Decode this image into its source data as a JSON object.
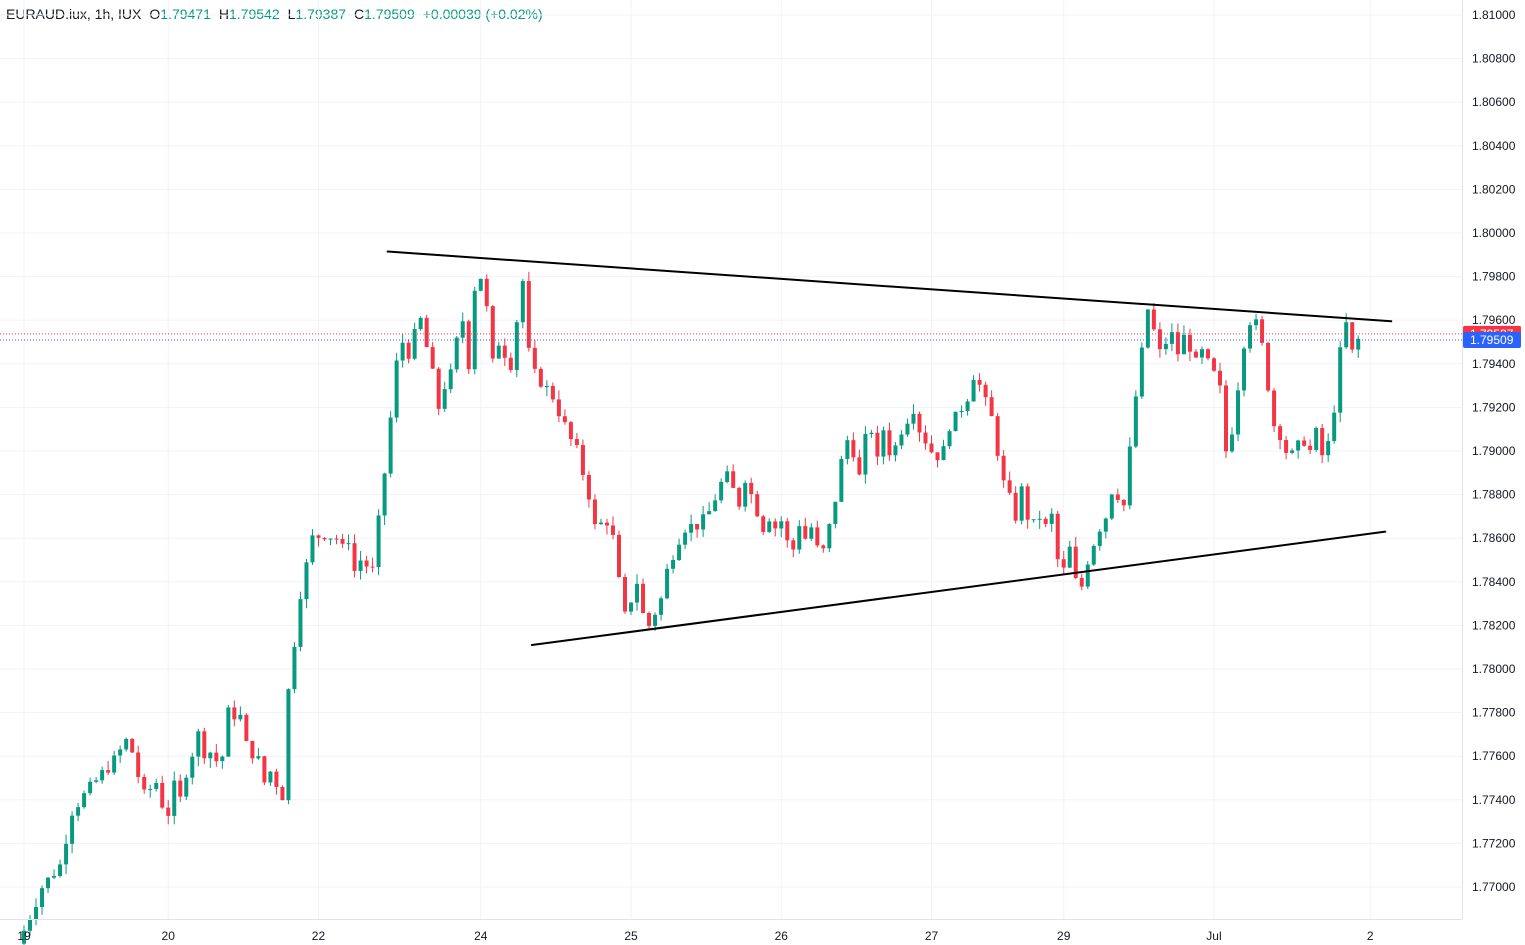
{
  "legend": {
    "symbol": "EURAUD.iux, 1h, IUX",
    "o_label": "O",
    "o": "1.79471",
    "h_label": "H",
    "h": "1.79542",
    "l_label": "L",
    "l": "1.79387",
    "c_label": "C",
    "c": "1.79509",
    "change": "+0.00039 (+0.02%)"
  },
  "colors": {
    "up": "#089981",
    "down": "#f23645",
    "grid": "#f0f3fa",
    "axis": "#e0e3eb",
    "trendline": "#000000",
    "tag_red": "#f23645",
    "tag_blue": "#2962ff"
  },
  "price_tags": [
    {
      "label": "1.79537",
      "value": 1.79537,
      "color": "#f23645"
    },
    {
      "label": "1.79509",
      "value": 1.79509,
      "color": "#2962ff"
    }
  ],
  "chart_data": {
    "type": "candlestick",
    "symbol": "EURAUD.iux",
    "timeframe": "1h",
    "ylim": [
      1.7682,
      1.8101
    ],
    "y_ticks": [
      "1.81000",
      "1.80800",
      "1.80600",
      "1.80400",
      "1.80200",
      "1.80000",
      "1.79800",
      "1.79600",
      "1.79400",
      "1.79200",
      "1.79000",
      "1.78800",
      "1.78600",
      "1.78400",
      "1.78200",
      "1.78000",
      "1.77800",
      "1.77600",
      "1.77400",
      "1.77200",
      "1.77000"
    ],
    "x_ticks": [
      {
        "label": "19",
        "bar": 0
      },
      {
        "label": "20",
        "bar": 24
      },
      {
        "label": "22",
        "bar": 49
      },
      {
        "label": "24",
        "bar": 76
      },
      {
        "label": "25",
        "bar": 101
      },
      {
        "label": "26",
        "bar": 126
      },
      {
        "label": "27",
        "bar": 151
      },
      {
        "label": "29",
        "bar": 173
      },
      {
        "label": "Jul",
        "bar": 198
      },
      {
        "label": "2",
        "bar": 224
      }
    ],
    "bar_spacing_index": 1,
    "total_bars": 203,
    "trendlines": [
      {
        "name": "upper",
        "x1": 60.5,
        "y1": 1.79915,
        "x2": 227.5,
        "y2": 1.79595
      },
      {
        "name": "lower",
        "x1": 84.5,
        "y1": 1.7811,
        "x2": 226.5,
        "y2": 1.7863
      }
    ],
    "segments": [
      [
        0,
        1.768
      ],
      [
        3,
        1.77
      ],
      [
        6,
        1.771
      ],
      [
        8,
        1.7735
      ],
      [
        10,
        1.7742
      ],
      [
        13,
        1.7752
      ],
      [
        15,
        1.7758
      ],
      [
        17,
        1.7767
      ],
      [
        18,
        1.7762
      ],
      [
        19,
        1.7751
      ],
      [
        20,
        1.7742
      ],
      [
        22,
        1.7748
      ],
      [
        23,
        1.7738
      ],
      [
        24,
        1.7734
      ],
      [
        25,
        1.7746
      ],
      [
        26,
        1.774
      ],
      [
        27,
        1.7753
      ],
      [
        29,
        1.777
      ],
      [
        30,
        1.7762
      ],
      [
        31,
        1.7762
      ],
      [
        32,
        1.7758
      ],
      [
        33,
        1.776
      ],
      [
        34,
        1.778
      ],
      [
        36,
        1.7778
      ],
      [
        37,
        1.7765
      ],
      [
        39,
        1.7758
      ],
      [
        40,
        1.7748
      ],
      [
        41,
        1.7753
      ],
      [
        43,
        1.7742
      ],
      [
        44,
        1.779
      ],
      [
        46,
        1.7835
      ],
      [
        48,
        1.786
      ],
      [
        50,
        1.7862
      ],
      [
        52,
        1.786
      ],
      [
        53,
        1.7855
      ],
      [
        54,
        1.786
      ],
      [
        55,
        1.7845
      ],
      [
        56,
        1.785
      ],
      [
        58,
        1.7845
      ],
      [
        60,
        1.789
      ],
      [
        62,
        1.794
      ],
      [
        63,
        1.795
      ],
      [
        64,
        1.7945
      ],
      [
        65,
        1.7953
      ],
      [
        66,
        1.796
      ],
      [
        68,
        1.7935
      ],
      [
        69,
        1.792
      ],
      [
        70,
        1.793
      ],
      [
        71,
        1.7935
      ],
      [
        72,
        1.795
      ],
      [
        73,
        1.796
      ],
      [
        74,
        1.794
      ],
      [
        75,
        1.7975
      ],
      [
        76,
        1.798
      ],
      [
        77,
        1.7965
      ],
      [
        78,
        1.794
      ],
      [
        79,
        1.795
      ],
      [
        80,
        1.7945
      ],
      [
        81,
        1.794
      ],
      [
        82,
        1.796
      ],
      [
        83,
        1.7978
      ],
      [
        84,
        1.7945
      ],
      [
        85,
        1.7935
      ],
      [
        86,
        1.7932
      ],
      [
        88,
        1.7925
      ],
      [
        89,
        1.7918
      ],
      [
        91,
        1.7905
      ],
      [
        92,
        1.79
      ],
      [
        93,
        1.789
      ],
      [
        94,
        1.788
      ],
      [
        95,
        1.7865
      ],
      [
        97,
        1.7868
      ],
      [
        98,
        1.786
      ],
      [
        99,
        1.784
      ],
      [
        100,
        1.7824
      ],
      [
        101,
        1.7832
      ],
      [
        102,
        1.784
      ],
      [
        103,
        1.7825
      ],
      [
        104,
        1.782
      ],
      [
        106,
        1.7832
      ],
      [
        107,
        1.7845
      ],
      [
        108,
        1.7853
      ],
      [
        109,
        1.786
      ],
      [
        110,
        1.7865
      ],
      [
        112,
        1.7866
      ],
      [
        113,
        1.7868
      ],
      [
        114,
        1.7872
      ],
      [
        116,
        1.7885
      ],
      [
        117,
        1.7888
      ],
      [
        118,
        1.7882
      ],
      [
        119,
        1.7876
      ],
      [
        120,
        1.7888
      ],
      [
        121,
        1.788
      ],
      [
        123,
        1.7865
      ],
      [
        124,
        1.787
      ],
      [
        125,
        1.7865
      ],
      [
        126,
        1.7868
      ],
      [
        127,
        1.7858
      ],
      [
        128,
        1.7855
      ],
      [
        129,
        1.7867
      ],
      [
        130,
        1.786
      ],
      [
        131,
        1.7865
      ],
      [
        132,
        1.7855
      ],
      [
        133,
        1.7854
      ],
      [
        134,
        1.7865
      ],
      [
        135,
        1.7878
      ],
      [
        136,
        1.7895
      ],
      [
        137,
        1.7905
      ],
      [
        138,
        1.79
      ],
      [
        139,
        1.7888
      ],
      [
        140,
        1.7905
      ],
      [
        141,
        1.791
      ],
      [
        142,
        1.7895
      ],
      [
        143,
        1.791
      ],
      [
        144,
        1.79
      ],
      [
        145,
        1.7902
      ],
      [
        146,
        1.791
      ],
      [
        147,
        1.7915
      ],
      [
        148,
        1.792
      ],
      [
        149,
        1.791
      ],
      [
        150,
        1.7905
      ],
      [
        151,
        1.79
      ],
      [
        152,
        1.7898
      ],
      [
        153,
        1.79
      ],
      [
        154,
        1.7912
      ],
      [
        155,
        1.7915
      ],
      [
        156,
        1.792
      ],
      [
        157,
        1.7925
      ],
      [
        158,
        1.7935
      ],
      [
        159,
        1.793
      ],
      [
        160,
        1.7922
      ],
      [
        161,
        1.7915
      ],
      [
        162,
        1.79
      ],
      [
        163,
        1.7885
      ],
      [
        164,
        1.7878
      ],
      [
        165,
        1.787
      ],
      [
        166,
        1.7882
      ],
      [
        167,
        1.787
      ],
      [
        168,
        1.7866
      ],
      [
        169,
        1.787
      ],
      [
        170,
        1.7865
      ],
      [
        171,
        1.787
      ],
      [
        172,
        1.785
      ],
      [
        173,
        1.7845
      ],
      [
        174,
        1.7855
      ],
      [
        175,
        1.784
      ],
      [
        176,
        1.7838
      ],
      [
        177,
        1.785
      ],
      [
        178,
        1.7858
      ],
      [
        179,
        1.7865
      ],
      [
        180,
        1.787
      ],
      [
        181,
        1.7882
      ],
      [
        182,
        1.788
      ],
      [
        183,
        1.7875
      ],
      [
        184,
        1.79
      ],
      [
        185,
        1.7925
      ],
      [
        186,
        1.7945
      ],
      [
        187,
        1.7965
      ],
      [
        188,
        1.7955
      ],
      [
        189,
        1.7945
      ],
      [
        190,
        1.795
      ],
      [
        191,
        1.7953
      ],
      [
        192,
        1.7945
      ],
      [
        193,
        1.7952
      ],
      [
        194,
        1.7948
      ],
      [
        195,
        1.794
      ],
      [
        196,
        1.7945
      ],
      [
        197,
        1.794
      ],
      [
        198,
        1.7935
      ],
      [
        199,
        1.7928
      ],
      [
        200,
        1.79
      ],
      [
        201,
        1.791
      ],
      [
        202,
        1.793
      ],
      [
        203,
        1.795
      ],
      [
        204,
        1.796
      ],
      [
        205,
        1.7958
      ],
      [
        206,
        1.7948
      ],
      [
        207,
        1.793
      ],
      [
        208,
        1.7912
      ],
      [
        209,
        1.7908
      ],
      [
        210,
        1.79
      ],
      [
        211,
        1.7898
      ],
      [
        212,
        1.7902
      ],
      [
        213,
        1.7905
      ],
      [
        214,
        1.79
      ],
      [
        215,
        1.7908
      ],
      [
        216,
        1.7898
      ],
      [
        217,
        1.7903
      ],
      [
        218,
        1.792
      ],
      [
        219,
        1.7945
      ],
      [
        220,
        1.7958
      ],
      [
        221,
        1.7945
      ],
      [
        222,
        1.7951
      ]
    ]
  }
}
